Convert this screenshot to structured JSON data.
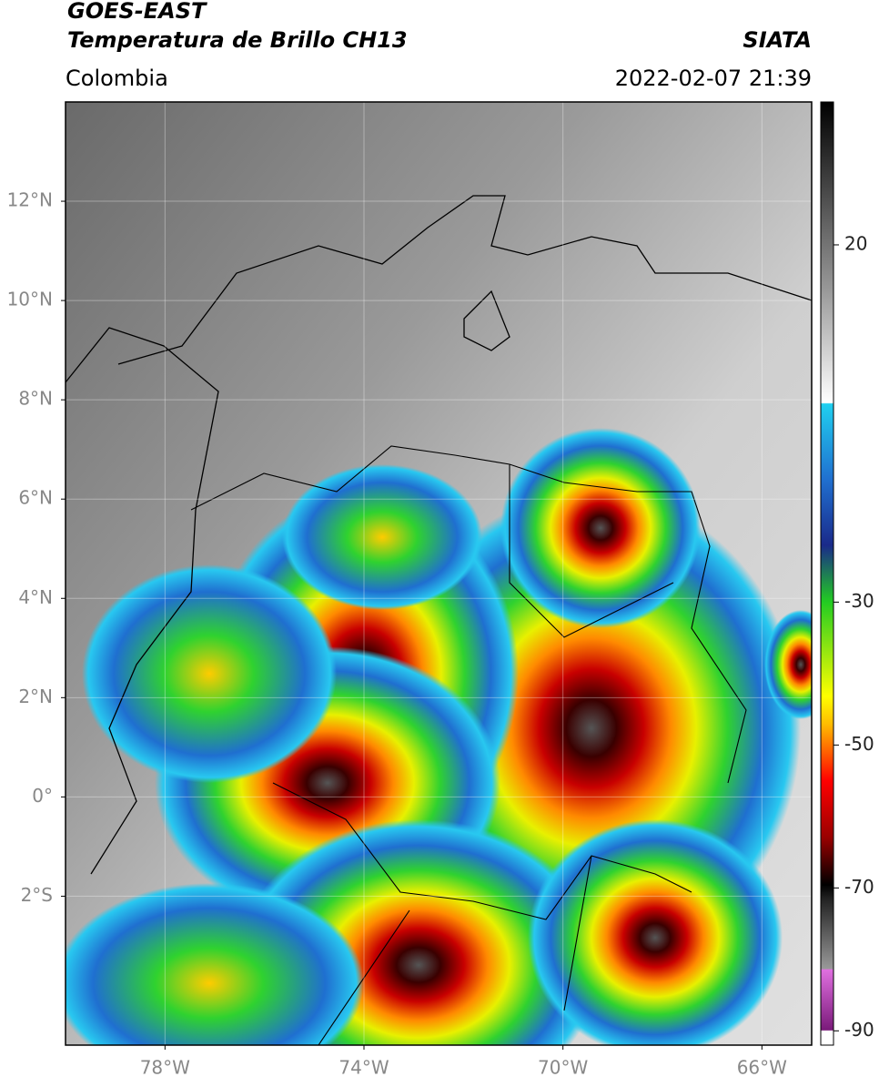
{
  "header": {
    "title_line1": "GOES-EAST",
    "title_line2": "Temperatura de Brillo CH13",
    "source": "SIATA",
    "region": "Colombia",
    "datetime": "2022-02-07 21:39"
  },
  "map": {
    "xlim": [
      -80,
      -65
    ],
    "ylim": [
      -5,
      14
    ],
    "lat_ticks": [
      {
        "value": 12,
        "label": "12°N"
      },
      {
        "value": 10,
        "label": "10°N"
      },
      {
        "value": 8,
        "label": "8°N"
      },
      {
        "value": 6,
        "label": "6°N"
      },
      {
        "value": 4,
        "label": "4°N"
      },
      {
        "value": 2,
        "label": "2°N"
      },
      {
        "value": 0,
        "label": "0°"
      },
      {
        "value": -2,
        "label": "2°S"
      }
    ],
    "lon_ticks": [
      {
        "value": -78,
        "label": "78°W"
      },
      {
        "value": -74,
        "label": "74°W"
      },
      {
        "value": -70,
        "label": "70°W"
      },
      {
        "value": -66,
        "label": "66°W"
      }
    ]
  },
  "colorbar": {
    "lim": [
      -92,
      40
    ],
    "ticks": [
      20,
      -30,
      -50,
      -70,
      -90
    ]
  }
}
